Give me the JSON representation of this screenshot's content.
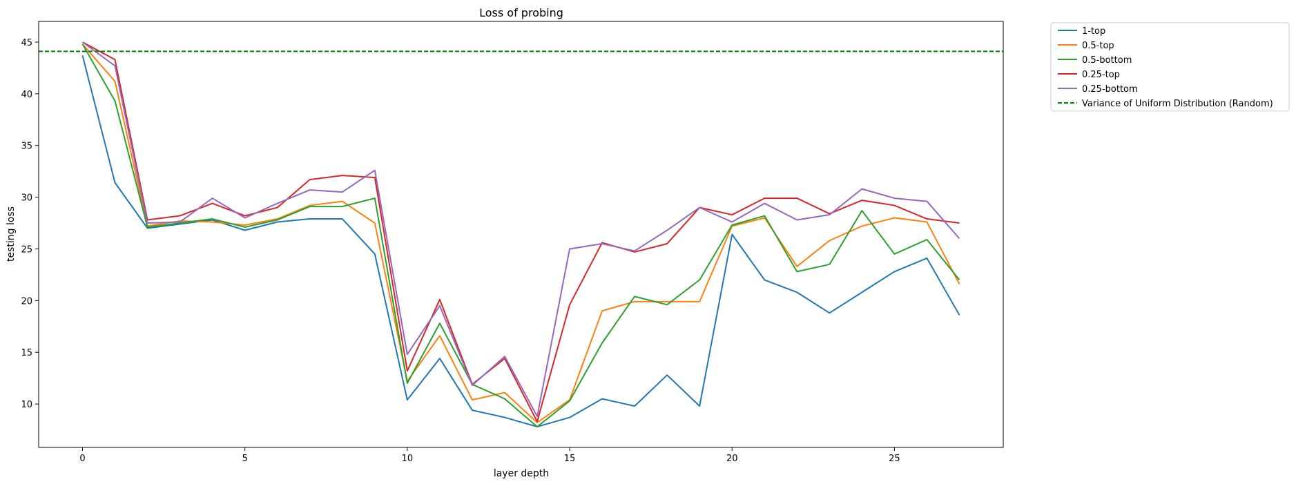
{
  "chart_data": {
    "type": "line",
    "title": "Loss of probing",
    "xlabel": "layer depth",
    "ylabel": "testing loss",
    "xlim": [
      -1.35,
      28.35
    ],
    "ylim": [
      5.8,
      47.0
    ],
    "xticks": [
      0,
      5,
      10,
      15,
      20,
      25
    ],
    "yticks": [
      10,
      15,
      20,
      25,
      30,
      35,
      40,
      45
    ],
    "grid": false,
    "legend_placement": "outside-upper-right",
    "x": [
      0,
      1,
      2,
      3,
      4,
      5,
      6,
      7,
      8,
      9,
      10,
      11,
      12,
      13,
      14,
      15,
      16,
      17,
      18,
      19,
      20,
      21,
      22,
      23,
      24,
      25,
      26,
      27
    ],
    "series": [
      {
        "name": "1-top",
        "color": "#1f77b4",
        "style": "solid",
        "values": [
          43.7,
          31.4,
          27.0,
          27.4,
          27.8,
          26.8,
          27.6,
          27.9,
          27.9,
          24.5,
          10.4,
          14.4,
          9.4,
          8.7,
          7.8,
          8.7,
          10.5,
          9.8,
          12.8,
          9.8,
          26.4,
          22.0,
          20.8,
          18.8,
          20.8,
          22.8,
          24.1,
          18.6
        ]
      },
      {
        "name": "0.5-top",
        "color": "#ff7f0e",
        "style": "solid",
        "values": [
          44.8,
          41.2,
          27.2,
          27.7,
          27.6,
          27.3,
          27.9,
          29.2,
          29.6,
          27.5,
          12.2,
          16.6,
          10.4,
          11.1,
          8.2,
          10.4,
          19.0,
          19.9,
          19.9,
          19.9,
          27.2,
          28.0,
          23.3,
          25.8,
          27.2,
          28.0,
          27.6,
          21.6
        ]
      },
      {
        "name": "0.5-bottom",
        "color": "#2ca02c",
        "style": "solid",
        "values": [
          44.8,
          39.3,
          27.1,
          27.5,
          27.9,
          27.1,
          27.8,
          29.1,
          29.1,
          29.9,
          12.0,
          17.8,
          11.9,
          10.5,
          7.8,
          10.3,
          15.9,
          20.4,
          19.6,
          22.0,
          27.3,
          28.2,
          22.8,
          23.5,
          28.7,
          24.5,
          25.9,
          22.0
        ]
      },
      {
        "name": "0.25-top",
        "color": "#d62728",
        "style": "solid",
        "values": [
          45.0,
          43.3,
          27.8,
          28.2,
          29.4,
          28.2,
          29.0,
          31.7,
          32.1,
          31.9,
          13.2,
          20.1,
          11.9,
          14.4,
          8.3,
          19.6,
          25.6,
          24.7,
          25.5,
          29.0,
          28.3,
          29.9,
          29.9,
          28.4,
          29.7,
          29.2,
          27.9,
          27.5
        ]
      },
      {
        "name": "0.25-bottom",
        "color": "#9467bd",
        "style": "solid",
        "values": [
          45.0,
          42.7,
          27.5,
          27.6,
          29.9,
          28.0,
          29.4,
          30.7,
          30.5,
          32.6,
          14.8,
          19.5,
          11.8,
          14.6,
          8.8,
          25.0,
          25.5,
          24.8,
          26.8,
          29.0,
          27.6,
          29.4,
          27.8,
          28.3,
          30.8,
          29.9,
          29.6,
          26.0
        ]
      },
      {
        "name": "Variance of Uniform Distribution (Random)",
        "color": "#008000",
        "style": "dashed",
        "values": [
          44.1,
          44.1,
          44.1,
          44.1,
          44.1,
          44.1,
          44.1,
          44.1,
          44.1,
          44.1,
          44.1,
          44.1,
          44.1,
          44.1,
          44.1,
          44.1,
          44.1,
          44.1,
          44.1,
          44.1,
          44.1,
          44.1,
          44.1,
          44.1,
          44.1,
          44.1,
          44.1,
          44.1
        ]
      }
    ]
  }
}
